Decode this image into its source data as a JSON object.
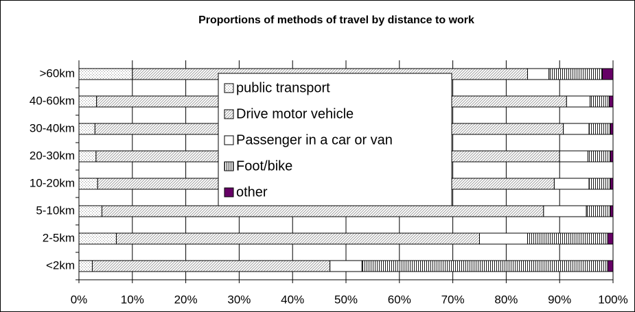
{
  "chart_data": {
    "type": "stacked_barh",
    "title": "Proportions of methods of travel by distance to work",
    "categories": [
      "<2km",
      "2-5km",
      "5-10km",
      "10-20km",
      "20-30km",
      "30-40km",
      "40-60km",
      ">60km"
    ],
    "series": [
      {
        "name": "public transport",
        "color": "#909090",
        "pattern": "dots",
        "values": [
          2.5,
          7,
          4.3,
          3.5,
          3.2,
          3,
          3.3,
          10
        ]
      },
      {
        "name": "Drive motor vehicle",
        "color": "#909090",
        "pattern": "diagonal",
        "values": [
          44.5,
          68,
          82.7,
          85.5,
          86.8,
          87.7,
          88,
          74
        ]
      },
      {
        "name": "Passenger in a car or van",
        "color": "#ffffff",
        "pattern": "none",
        "values": [
          6,
          9,
          8,
          6.5,
          5.3,
          4.8,
          4.4,
          4
        ]
      },
      {
        "name": "Foot/bike",
        "color": "#000000",
        "pattern": "vertical",
        "values": [
          46,
          15,
          4.5,
          4,
          4.2,
          4,
          3.6,
          10
        ]
      },
      {
        "name": "other",
        "color": "#660066",
        "pattern": "solid",
        "values": [
          1,
          1,
          0.5,
          0.5,
          0.5,
          0.5,
          0.7,
          2
        ]
      }
    ],
    "xlim": [
      0,
      100
    ],
    "xticks": [
      {
        "value": 0,
        "label": "0%"
      },
      {
        "value": 10,
        "label": "10%"
      },
      {
        "value": 20,
        "label": "20%"
      },
      {
        "value": 30,
        "label": "30%"
      },
      {
        "value": 40,
        "label": "40%"
      },
      {
        "value": 50,
        "label": "50%"
      },
      {
        "value": 60,
        "label": "60%"
      },
      {
        "value": 70,
        "label": "70%"
      },
      {
        "value": 80,
        "label": "80%"
      },
      {
        "value": 90,
        "label": "90%"
      },
      {
        "value": 100,
        "label": "100%"
      }
    ],
    "grid": true
  }
}
